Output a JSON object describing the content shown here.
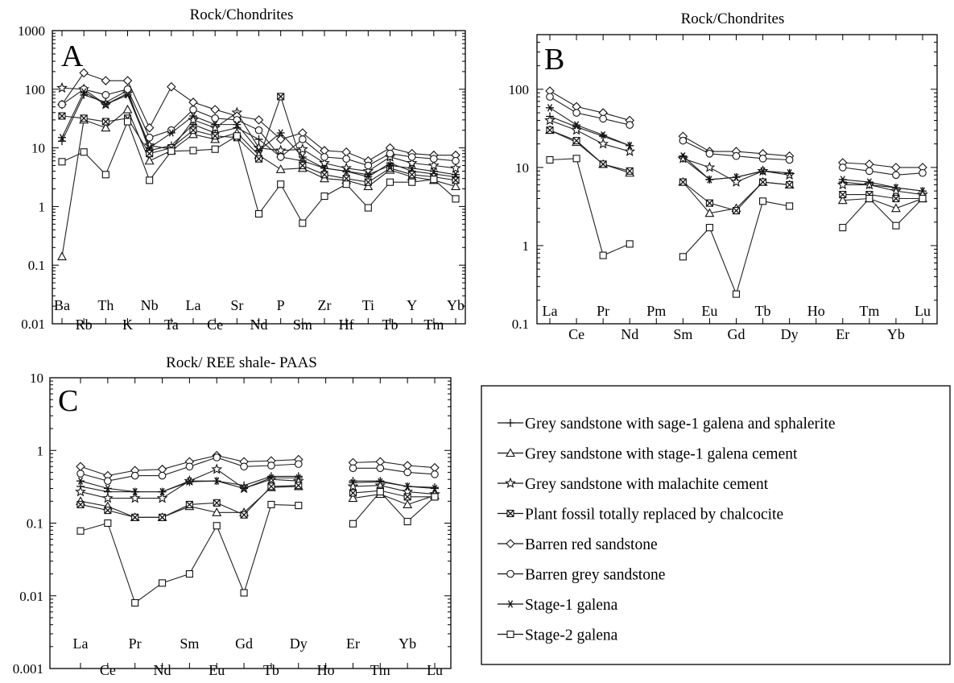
{
  "chart_data": [
    {
      "type": "line",
      "panel_letter": "A",
      "title": "Rock/Chondrites",
      "yscale": "log",
      "ylim": [
        0.01,
        1000
      ],
      "ytick_labels": [
        "1000",
        "100",
        "10",
        "1",
        "0.1",
        "0.01"
      ],
      "categories": [
        "Ba",
        "Rb",
        "Th",
        "K",
        "Nb",
        "Ta",
        "La",
        "Ce",
        "Sr",
        "Nd",
        "P",
        "Sm",
        "Zr",
        "Hf",
        "Ti",
        "Tb",
        "Y",
        "Tm",
        "Yb"
      ],
      "series": [
        {
          "name": "Grey sandstone with sage-1 galena and sphalerite",
          "marker": "plus",
          "values": [
            13,
            80,
            60,
            95,
            9,
            11,
            25,
            18,
            22,
            14,
            7,
            6,
            4.5,
            4,
            3.2,
            5.5,
            4,
            3.6,
            3.2
          ]
        },
        {
          "name": "Grey sandstone with stage-1 galena cement",
          "marker": "triangle",
          "values": [
            0.14,
            30,
            22,
            45,
            6,
            9,
            17,
            14,
            18,
            7.5,
            4.3,
            4.5,
            3,
            2.8,
            2.2,
            4.2,
            3.2,
            2.8,
            2.2
          ]
        },
        {
          "name": "Grey sandstone with malachite cement",
          "marker": "star",
          "values": [
            105,
            100,
            55,
            85,
            11,
            9.5,
            30,
            22,
            40,
            10,
            9,
            9.5,
            5.5,
            4.5,
            4,
            7,
            5.5,
            5,
            4.5
          ]
        },
        {
          "name": "Plant fossil totally replaced by chalcocite",
          "marker": "xbox",
          "values": [
            35,
            32,
            28,
            32,
            8,
            10,
            20,
            16,
            15,
            6.5,
            75,
            5,
            3.5,
            3,
            2.6,
            4.5,
            3.5,
            3.2,
            2.8
          ]
        },
        {
          "name": "Barren red sandstone",
          "marker": "diamond",
          "values": [
            55,
            190,
            140,
            140,
            22,
            110,
            60,
            45,
            35,
            30,
            14,
            18,
            9,
            8.5,
            6,
            10,
            8,
            7.5,
            7.5
          ]
        },
        {
          "name": "Barren grey sandstone",
          "marker": "circle",
          "values": [
            55,
            100,
            80,
            100,
            15,
            20,
            45,
            32,
            30,
            20,
            7,
            14,
            7,
            6.5,
            5,
            8,
            7,
            6.5,
            6
          ]
        },
        {
          "name": "Stage-1 galena",
          "marker": "asterisk",
          "values": [
            15,
            90,
            55,
            80,
            10,
            18,
            35,
            25,
            25,
            9,
            18,
            7,
            4.5,
            4,
            3.5,
            5,
            4.5,
            4,
            3.5
          ]
        },
        {
          "name": "Stage-2 galena",
          "marker": "square",
          "values": [
            5.8,
            8.5,
            3.5,
            28,
            2.8,
            8.8,
            9,
            9.5,
            16,
            0.75,
            2.4,
            0.52,
            1.5,
            2.4,
            0.95,
            2.6,
            2.6,
            2.9,
            1.35
          ]
        }
      ]
    },
    {
      "type": "line",
      "panel_letter": "B",
      "title": "Rock/Chondrites",
      "yscale": "log",
      "ylim": [
        0.1,
        500
      ],
      "ytick_labels": [
        "100",
        "10",
        "1",
        "0.1"
      ],
      "categories": [
        "La",
        "Ce",
        "Pr",
        "Nd",
        "Pm",
        "Sm",
        "Eu",
        "Gd",
        "Tb",
        "Dy",
        "Ho",
        "Er",
        "Tm",
        "Yb",
        "Lu"
      ],
      "series": [
        {
          "name": "Grey sandstone with sage-1 galena and sphalerite",
          "marker": "plus",
          "values": [
            45,
            33,
            25,
            19,
            null,
            13,
            7,
            7.5,
            9,
            8.5,
            null,
            6.5,
            6,
            5.5,
            5
          ]
        },
        {
          "name": "Grey sandstone with stage-1 galena cement",
          "marker": "triangle",
          "values": [
            30,
            21,
            11,
            8.5,
            null,
            6.5,
            2.6,
            3,
            6.5,
            6,
            null,
            3.8,
            4,
            3,
            4
          ]
        },
        {
          "name": "Grey sandstone with malachite cement",
          "marker": "star",
          "values": [
            40,
            30,
            20,
            16,
            null,
            13,
            10,
            6.5,
            9,
            8,
            null,
            6,
            6,
            5,
            4.5
          ]
        },
        {
          "name": "Plant fossil totally replaced by chalcocite",
          "marker": "xbox",
          "values": [
            30,
            22,
            11,
            9,
            null,
            6.5,
            3.5,
            2.8,
            6.5,
            6,
            null,
            4.5,
            4.5,
            4,
            4
          ]
        },
        {
          "name": "Barren red sandstone",
          "marker": "diamond",
          "values": [
            95,
            60,
            50,
            40,
            null,
            25,
            16,
            16,
            15,
            14,
            null,
            11.5,
            11,
            10,
            10
          ]
        },
        {
          "name": "Barren grey sandstone",
          "marker": "circle",
          "values": [
            80,
            50,
            42,
            35,
            null,
            22,
            15,
            14,
            13,
            12.5,
            null,
            10,
            9,
            8,
            8.5
          ]
        },
        {
          "name": "Stage-1 galena",
          "marker": "asterisk",
          "values": [
            58,
            35,
            26,
            19,
            null,
            14,
            7,
            7.5,
            9,
            8.5,
            null,
            7,
            6.5,
            5.5,
            5
          ]
        },
        {
          "name": "Stage-2 galena",
          "marker": "square",
          "values": [
            12.5,
            13,
            0.75,
            1.05,
            null,
            0.72,
            1.7,
            0.24,
            3.7,
            3.2,
            null,
            1.7,
            4,
            1.8,
            4
          ]
        }
      ]
    },
    {
      "type": "line",
      "panel_letter": "C",
      "title": "Rock/ REE shale- PAAS",
      "yscale": "log",
      "ylim": [
        0.001,
        10
      ],
      "ytick_labels": [
        "10",
        "1",
        "0.1",
        "0.01",
        "0.001"
      ],
      "categories": [
        "La",
        "Ce",
        "Pr",
        "Nd",
        "Sm",
        "Eu",
        "Gd",
        "Tb",
        "Dy",
        "Ho",
        "Er",
        "Tm",
        "Yb",
        "Lu"
      ],
      "series": [
        {
          "name": "Grey sandstone with sage-1 galena and sphalerite",
          "marker": "plus",
          "values": [
            0.32,
            0.27,
            0.27,
            0.27,
            0.37,
            0.38,
            0.33,
            0.44,
            0.44,
            null,
            0.38,
            0.38,
            0.32,
            0.31
          ]
        },
        {
          "name": "Grey sandstone with stage-1 galena cement",
          "marker": "triangle",
          "values": [
            0.2,
            0.17,
            0.12,
            0.12,
            0.17,
            0.14,
            0.14,
            0.31,
            0.32,
            null,
            0.22,
            0.25,
            0.18,
            0.24
          ]
        },
        {
          "name": "Grey sandstone with malachite cement",
          "marker": "star",
          "values": [
            0.27,
            0.22,
            0.22,
            0.22,
            0.38,
            0.55,
            0.3,
            0.4,
            0.38,
            null,
            0.32,
            0.33,
            0.27,
            0.25
          ]
        },
        {
          "name": "Plant fossil totally replaced by chalcocite",
          "marker": "xbox",
          "values": [
            0.18,
            0.15,
            0.12,
            0.12,
            0.18,
            0.19,
            0.13,
            0.32,
            0.33,
            null,
            0.26,
            0.28,
            0.23,
            0.23
          ]
        },
        {
          "name": "Barren red sandstone",
          "marker": "diamond",
          "values": [
            0.6,
            0.45,
            0.53,
            0.55,
            0.7,
            0.85,
            0.7,
            0.72,
            0.75,
            null,
            0.68,
            0.7,
            0.62,
            0.58
          ]
        },
        {
          "name": "Barren grey sandstone",
          "marker": "circle",
          "values": [
            0.48,
            0.38,
            0.45,
            0.45,
            0.6,
            0.8,
            0.6,
            0.62,
            0.65,
            null,
            0.57,
            0.57,
            0.5,
            0.47
          ]
        },
        {
          "name": "Stage-1 galena",
          "marker": "asterisk",
          "values": [
            0.38,
            0.3,
            0.27,
            0.27,
            0.38,
            0.38,
            0.3,
            0.42,
            0.42,
            null,
            0.36,
            0.37,
            0.32,
            0.3
          ]
        },
        {
          "name": "Stage-2 galena",
          "marker": "square",
          "values": [
            0.078,
            0.1,
            0.008,
            0.015,
            0.02,
            0.092,
            0.011,
            0.18,
            0.175,
            null,
            0.098,
            0.27,
            0.105,
            0.23
          ]
        }
      ]
    }
  ],
  "legend": {
    "items": [
      {
        "label": "Grey sandstone with sage-1 galena and sphalerite",
        "marker": "plus"
      },
      {
        "label": "Grey sandstone with stage-1 galena cement",
        "marker": "triangle"
      },
      {
        "label": "Grey sandstone with malachite cement",
        "marker": "star"
      },
      {
        "label": "Plant fossil totally replaced by chalcocite",
        "marker": "xbox"
      },
      {
        "label": "Barren red sandstone",
        "marker": "diamond"
      },
      {
        "label": "Barren grey sandstone",
        "marker": "circle"
      },
      {
        "label": "Stage-1 galena",
        "marker": "asterisk"
      },
      {
        "label": "Stage-2 galena",
        "marker": "square"
      }
    ]
  }
}
